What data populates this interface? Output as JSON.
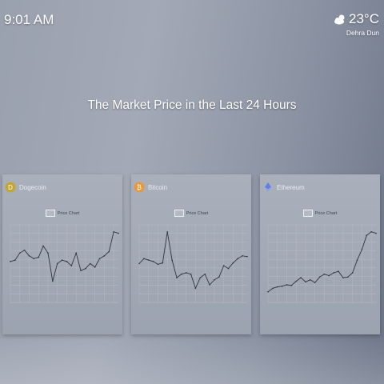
{
  "clock": {
    "time": "9:01 AM"
  },
  "weather": {
    "temperature": "23°C",
    "city": "Dehra Dun",
    "icon": "partly-cloudy-icon"
  },
  "headline": "The Market Price in the Last 24 Hours",
  "cards": [
    {
      "name": "Dogecoin",
      "icon": "dogecoin-icon",
      "legend": "Price Chart",
      "accent": "#c2a633"
    },
    {
      "name": "Bitcoin",
      "icon": "bitcoin-icon",
      "legend": "Price Chart",
      "accent": "#e8973a"
    },
    {
      "name": "Ethereum",
      "icon": "ethereum-icon",
      "legend": "Price Chart",
      "accent": "#627eea"
    }
  ],
  "chart_data": [
    {
      "type": "line",
      "series": [
        {
          "values": [
            0.58,
            0.6,
            0.7,
            0.74,
            0.66,
            0.62,
            0.64,
            0.8,
            0.7,
            0.3,
            0.55,
            0.6,
            0.58,
            0.52,
            0.7,
            0.45,
            0.48,
            0.55,
            0.5,
            0.62,
            0.66,
            0.72,
            1.0,
            0.98
          ]
        }
      ],
      "ylim": [
        0,
        1.1
      ]
    },
    {
      "type": "line",
      "series": [
        {
          "values": [
            0.55,
            0.62,
            0.6,
            0.58,
            0.54,
            0.56,
            1.0,
            0.6,
            0.35,
            0.4,
            0.42,
            0.4,
            0.2,
            0.35,
            0.4,
            0.25,
            0.32,
            0.36,
            0.52,
            0.48,
            0.56,
            0.62,
            0.66,
            0.65
          ]
        }
      ],
      "ylim": [
        0,
        1.1
      ]
    },
    {
      "type": "line",
      "series": [
        {
          "values": [
            0.15,
            0.2,
            0.22,
            0.23,
            0.25,
            0.24,
            0.3,
            0.35,
            0.29,
            0.32,
            0.28,
            0.36,
            0.4,
            0.38,
            0.42,
            0.44,
            0.35,
            0.36,
            0.42,
            0.6,
            0.75,
            0.95,
            1.0,
            0.98
          ]
        }
      ],
      "ylim": [
        0,
        1.1
      ]
    }
  ]
}
